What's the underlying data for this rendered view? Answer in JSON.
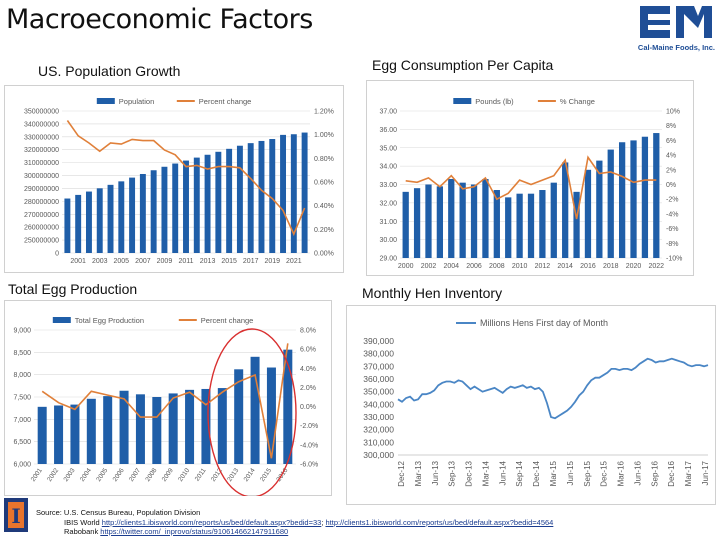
{
  "page": {
    "title": "Macroeconomic Factors",
    "logo_caption": "Cal-Maine Foods, Inc.",
    "logo_mark": "CM",
    "uofi_mark": "I"
  },
  "sections": {
    "pop": "US. Population Growth",
    "egg_per_capita": "Egg Consumption Per Capita",
    "total_egg": "Total Egg Production",
    "hen": "Monthly Hen Inventory"
  },
  "footer": {
    "line1": "Source: U.S. Census Bureau, Population Division",
    "line2_prefix": "IBIS World ",
    "line2_link1": "http://clients1.ibisworld.com/reports/us/bed/default.aspx?bedid=33",
    "line2_sep": "; ",
    "line2_link2": "http://clients1.ibisworld.com/reports/us/bed/default.aspx?bedid=4564",
    "line3_prefix": "Rabobank ",
    "line3_link": "https://twitter.com/_inprovo/status/910614662147911680"
  },
  "colors": {
    "bar": "#1f5ea8",
    "line": "#e0803a",
    "hen_line": "#4a86c5",
    "grid": "#d9d9d9",
    "highlight": "#d93030",
    "text": "#595959"
  },
  "chart_data": [
    {
      "id": "pop",
      "type": "bar",
      "title": "US. Population Growth",
      "legend": [
        "Population",
        "Percent change"
      ],
      "categories": [
        "2000",
        "2001",
        "2002",
        "2003",
        "2004",
        "2005",
        "2006",
        "2007",
        "2008",
        "2009",
        "2010",
        "2011",
        "2012",
        "2013",
        "2014",
        "2015",
        "2016",
        "2017",
        "2018",
        "2019",
        "2020",
        "2021",
        "2022"
      ],
      "xticks": [
        "2001",
        "2003",
        "2005",
        "2007",
        "2009",
        "2011",
        "2013",
        "2015",
        "2017",
        "2019",
        "2021"
      ],
      "series": [
        {
          "name": "Population",
          "kind": "bar",
          "axis": "left",
          "values": [
            282200000,
            285000000,
            287600000,
            290100000,
            292800000,
            295500000,
            298400000,
            301200000,
            304100000,
            306800000,
            309300000,
            311600000,
            313900000,
            316100000,
            318400000,
            320700000,
            323100000,
            325100000,
            326800000,
            328300000,
            331500000,
            332000000,
            333300000
          ]
        },
        {
          "name": "Percent change",
          "kind": "line",
          "axis": "right",
          "values": [
            1.12,
            0.99,
            0.93,
            0.86,
            0.93,
            0.92,
            0.96,
            0.95,
            0.95,
            0.87,
            0.83,
            0.73,
            0.74,
            0.71,
            0.73,
            0.73,
            0.72,
            0.63,
            0.53,
            0.46,
            0.36,
            0.16,
            0.38
          ]
        }
      ],
      "ylim": [
        0,
        350000000
      ],
      "yticks": [
        "0",
        "250000000",
        "260000000",
        "270000000",
        "280000000",
        "290000000",
        "300000000",
        "310000000",
        "320000000",
        "330000000",
        "340000000",
        "350000000"
      ],
      "y2ticks": [
        "0.00%",
        "0.20%",
        "0.40%",
        "0.60%",
        "0.80%",
        "1.00%",
        "1.20%"
      ],
      "y2lim": [
        0,
        1.2
      ]
    },
    {
      "id": "percap",
      "type": "bar",
      "title": "Egg Consumption Per Capita",
      "legend": [
        "Pounds (lb)",
        "% Change"
      ],
      "categories": [
        "2000",
        "2001",
        "2002",
        "2003",
        "2004",
        "2005",
        "2006",
        "2007",
        "2008",
        "2009",
        "2010",
        "2011",
        "2012",
        "2013",
        "2014",
        "2015",
        "2016",
        "2017",
        "2018",
        "2019",
        "2020",
        "2021",
        "2022"
      ],
      "xticks": [
        "2000",
        "2002",
        "2004",
        "2006",
        "2008",
        "2010",
        "2012",
        "2014",
        "2016",
        "2018",
        "2020",
        "2022"
      ],
      "series": [
        {
          "name": "Pounds (lb)",
          "kind": "bar",
          "axis": "left",
          "values": [
            32.6,
            32.8,
            33.0,
            32.9,
            33.3,
            33.1,
            33.0,
            33.3,
            32.7,
            32.3,
            32.5,
            32.5,
            32.7,
            33.1,
            34.2,
            32.6,
            33.8,
            34.3,
            34.9,
            35.3,
            35.4,
            35.6,
            35.8
          ]
        },
        {
          "name": "% Change",
          "kind": "line",
          "axis": "right",
          "values": [
            0.5,
            0.3,
            0.9,
            -0.3,
            1.2,
            -0.6,
            -0.3,
            0.9,
            -2.0,
            -1.2,
            0.6,
            0.0,
            0.6,
            1.2,
            3.3,
            -4.7,
            3.7,
            1.5,
            1.7,
            1.1,
            0.3,
            0.6,
            0.6
          ]
        }
      ],
      "ylim": [
        29,
        37
      ],
      "yticks": [
        "29.00",
        "30.00",
        "31.00",
        "32.00",
        "33.00",
        "34.00",
        "35.00",
        "36.00",
        "37.00"
      ],
      "y2ticks": [
        "-10%",
        "-8%",
        "-6%",
        "-4%",
        "-2%",
        "0%",
        "2%",
        "4%",
        "6%",
        "8%",
        "10%"
      ],
      "y2lim": [
        -10,
        10
      ]
    },
    {
      "id": "total",
      "type": "bar",
      "title": "Total Egg Production",
      "legend": [
        "Total Egg Production",
        "Percent change"
      ],
      "categories": [
        "2001",
        "2002",
        "2003",
        "2004",
        "2005",
        "2006",
        "2007",
        "2008",
        "2009",
        "2010",
        "2011",
        "2012",
        "2013",
        "2014",
        "2015",
        "2016"
      ],
      "series": [
        {
          "name": "Total Egg Production",
          "kind": "bar",
          "axis": "left",
          "values": [
            7280,
            7310,
            7330,
            7460,
            7520,
            7640,
            7560,
            7500,
            7580,
            7660,
            7680,
            7700,
            8120,
            8400,
            8160,
            8560
          ]
        },
        {
          "name": "Percent change",
          "kind": "line",
          "axis": "right",
          "values": [
            1.6,
            0.4,
            -0.3,
            1.6,
            1.2,
            0.8,
            -1.1,
            -1.1,
            0.9,
            1.5,
            0.2,
            1.5,
            2.6,
            3.3,
            -5.4,
            6.6
          ]
        }
      ],
      "ylim": [
        6000,
        9000
      ],
      "yticks": [
        "6,000",
        "6,500",
        "7,000",
        "7,500",
        "8,000",
        "8,500",
        "9,000"
      ],
      "y2ticks": [
        "-6.0%",
        "-4.0%",
        "-2.0%",
        "0.0%",
        "2.0%",
        "4.0%",
        "6.0%",
        "8.0%"
      ],
      "y2lim": [
        -6,
        8
      ]
    },
    {
      "id": "hen",
      "type": "line",
      "title": "Monthly Hen Inventory",
      "legend": [
        "Millions Hens First day of Month"
      ],
      "xticks": [
        "Dec-12",
        "Mar-13",
        "Jun-13",
        "Sep-13",
        "Dec-13",
        "Mar-14",
        "Jun-14",
        "Sep-14",
        "Dec-14",
        "Mar-15",
        "Jun-15",
        "Sep-15",
        "Dec-15",
        "Mar-16",
        "Jun-16",
        "Sep-16",
        "Dec-16",
        "Mar-17",
        "Jun-17"
      ],
      "values": [
        344,
        342,
        345,
        346,
        343,
        344,
        348,
        348,
        349,
        351,
        355,
        357,
        358,
        358,
        357,
        359,
        358,
        355,
        352,
        354,
        352,
        350,
        351,
        352,
        353,
        351,
        349,
        352,
        354,
        353,
        354,
        355,
        353,
        354,
        352,
        353,
        350,
        341,
        330,
        329,
        331,
        333,
        335,
        338,
        342,
        347,
        350,
        355,
        359,
        361,
        361,
        363,
        365,
        368,
        368,
        367,
        368,
        368,
        367,
        369,
        372,
        374,
        376,
        375,
        373,
        374,
        374,
        375,
        376,
        375,
        374,
        373,
        371,
        370,
        371,
        371,
        370,
        371
      ],
      "ylim": [
        300,
        390
      ],
      "yticks": [
        "300,000",
        "310,000",
        "320,000",
        "330,000",
        "340,000",
        "350,000",
        "360,000",
        "370,000",
        "380,000",
        "390,000"
      ]
    }
  ]
}
